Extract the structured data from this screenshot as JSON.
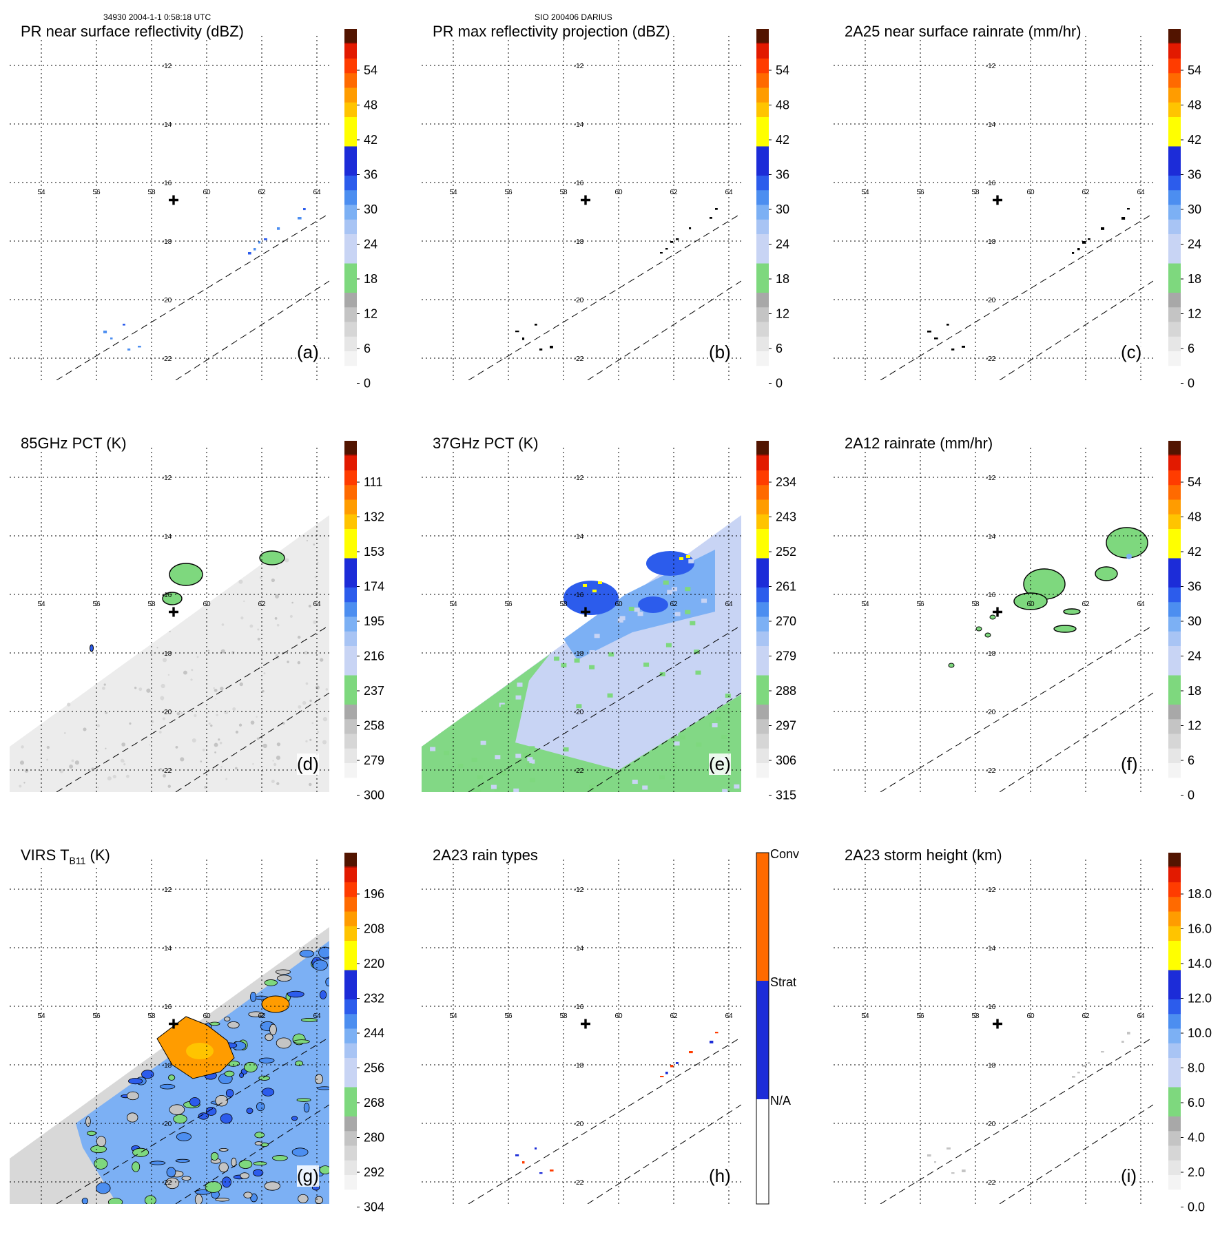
{
  "header": {
    "left": "34930 2004-1-1 0:58:18 UTC",
    "center": "SIO 200406 DARIUS"
  },
  "grid": {
    "lon_labels": [
      "54",
      "56",
      "58",
      "60",
      "62",
      "64"
    ],
    "lat_labels": [
      "-12",
      "-14",
      "-16",
      "-18",
      "-20",
      "-22"
    ]
  },
  "colors": {
    "gray_scale": [
      "#ffffff",
      "#ececec",
      "#d8d8d8",
      "#c4c4c4",
      "#a8a8a8"
    ],
    "green": "#7ed87e",
    "light_blue": [
      "#c8d4f4",
      "#a8c4f4",
      "#7cb0f4",
      "#4c8ef0"
    ],
    "blue": [
      "#2c5cec",
      "#1c2cd8"
    ],
    "yellow": "#ffff00",
    "warm": [
      "#ffc400",
      "#ff9c00",
      "#ff6a00",
      "#ff3c00",
      "#e21a00",
      "#b00e00",
      "#7e0c00",
      "#521400"
    ]
  },
  "panels": [
    {
      "id": "a",
      "title": "PR near surface reflectivity (dBZ)",
      "label": "(a)",
      "ticks": [
        "54",
        "48",
        "42",
        "36",
        "30",
        "24",
        "18",
        "12",
        "6",
        "0"
      ],
      "field": "pr"
    },
    {
      "id": "b",
      "title": "PR max reflectivity projection (dBZ)",
      "label": "(b)",
      "ticks": [
        "54",
        "48",
        "42",
        "36",
        "30",
        "24",
        "18",
        "12",
        "6",
        "0"
      ],
      "field": "pr"
    },
    {
      "id": "c",
      "title": "2A25 near surface rainrate (mm/hr)",
      "label": "(c)",
      "ticks": [
        "54",
        "48",
        "42",
        "36",
        "30",
        "24",
        "18",
        "12",
        "6",
        "0"
      ],
      "field": "pr"
    },
    {
      "id": "d",
      "title": "85GHz PCT (K)",
      "label": "(d)",
      "ticks": [
        "111",
        "132",
        "153",
        "174",
        "195",
        "216",
        "237",
        "258",
        "279",
        "300"
      ],
      "field": "tmi85"
    },
    {
      "id": "e",
      "title": "37GHz PCT (K)",
      "label": "(e)",
      "ticks": [
        "234",
        "243",
        "252",
        "261",
        "270",
        "279",
        "288",
        "297",
        "306",
        "315"
      ],
      "field": "tmi37"
    },
    {
      "id": "f",
      "title": "2A12 rainrate (mm/hr)",
      "label": "(f)",
      "ticks": [
        "54",
        "48",
        "42",
        "36",
        "30",
        "24",
        "18",
        "12",
        "6",
        "0"
      ],
      "field": "tmirain"
    },
    {
      "id": "g",
      "title": "VIRS T",
      "title_sub": "B11",
      "title_suffix": " (K)",
      "label": "(g)",
      "ticks": [
        "196",
        "208",
        "220",
        "232",
        "244",
        "256",
        "268",
        "280",
        "292",
        "304"
      ],
      "field": "virs"
    },
    {
      "id": "h",
      "title": "2A23 rain types",
      "label": "(h)",
      "ticks_cat": [
        "Conv",
        "Strat",
        "N/A"
      ],
      "field": "pr"
    },
    {
      "id": "i",
      "title": "2A23 storm height (km)",
      "label": "(i)",
      "ticks": [
        "18.0",
        "16.0",
        "14.0",
        "12.0",
        "10.0",
        "8.0",
        "6.0",
        "4.0",
        "2.0",
        "0.0"
      ],
      "field": "pr"
    }
  ]
}
